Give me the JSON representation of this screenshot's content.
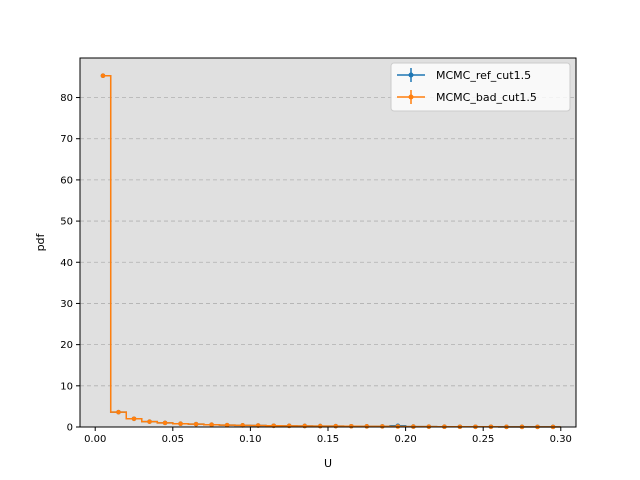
{
  "chart_data": {
    "type": "line",
    "style": "step-histogram",
    "title": "",
    "xlabel": "U",
    "ylabel": "pdf",
    "xlim": [
      -0.0098,
      0.3098
    ],
    "ylim": [
      0,
      89.6
    ],
    "xticks": [
      "0.00",
      "0.05",
      "0.10",
      "0.15",
      "0.20",
      "0.25",
      "0.30"
    ],
    "xtick_values": [
      0,
      0.05,
      0.1,
      0.15,
      0.2,
      0.25,
      0.3
    ],
    "yticks": [
      "0",
      "10",
      "20",
      "30",
      "40",
      "50",
      "60",
      "70",
      "80"
    ],
    "ytick_values": [
      0,
      10,
      20,
      30,
      40,
      50,
      60,
      70,
      80
    ],
    "grid": "y-dashed",
    "legend_position": "top-right",
    "background": "#e0e0e0",
    "bin_edges": [
      0,
      0.01,
      0.02,
      0.03,
      0.04,
      0.05,
      0.06,
      0.07,
      0.08,
      0.09,
      0.1,
      0.11,
      0.12,
      0.13,
      0.14,
      0.15,
      0.16,
      0.17,
      0.18,
      0.19,
      0.2,
      0.21,
      0.22,
      0.23,
      0.24,
      0.25,
      0.26,
      0.27,
      0.28,
      0.29,
      0.3
    ],
    "x": [
      0.005,
      0.015,
      0.025,
      0.035,
      0.045,
      0.055,
      0.065,
      0.075,
      0.085,
      0.095,
      0.105,
      0.115,
      0.125,
      0.135,
      0.145,
      0.155,
      0.165,
      0.175,
      0.185,
      0.195,
      0.205,
      0.215,
      0.225,
      0.235,
      0.245,
      0.255,
      0.265,
      0.275,
      0.285,
      0.295
    ],
    "series": [
      {
        "name": "MCMC_ref_cut1.5",
        "color": "#1f77b4",
        "values": [
          85.3,
          3.6,
          2.0,
          1.3,
          1.0,
          0.8,
          0.7,
          0.55,
          0.45,
          0.4,
          0.35,
          0.3,
          0.28,
          0.25,
          0.22,
          0.2,
          0.18,
          0.16,
          0.15,
          0.3,
          0.1,
          0.08,
          0.07,
          0.06,
          0.05,
          0.05,
          0.04,
          0.04,
          0.03,
          0.03
        ]
      },
      {
        "name": "MCMC_bad_cut1.5",
        "color": "#ff7f0e",
        "values": [
          85.3,
          3.6,
          2.0,
          1.3,
          1.0,
          0.8,
          0.7,
          0.55,
          0.45,
          0.4,
          0.35,
          0.3,
          0.28,
          0.25,
          0.22,
          0.2,
          0.18,
          0.16,
          0.15,
          0.12,
          0.1,
          0.08,
          0.07,
          0.06,
          0.05,
          0.05,
          0.04,
          0.04,
          0.03,
          0.03
        ]
      }
    ]
  }
}
